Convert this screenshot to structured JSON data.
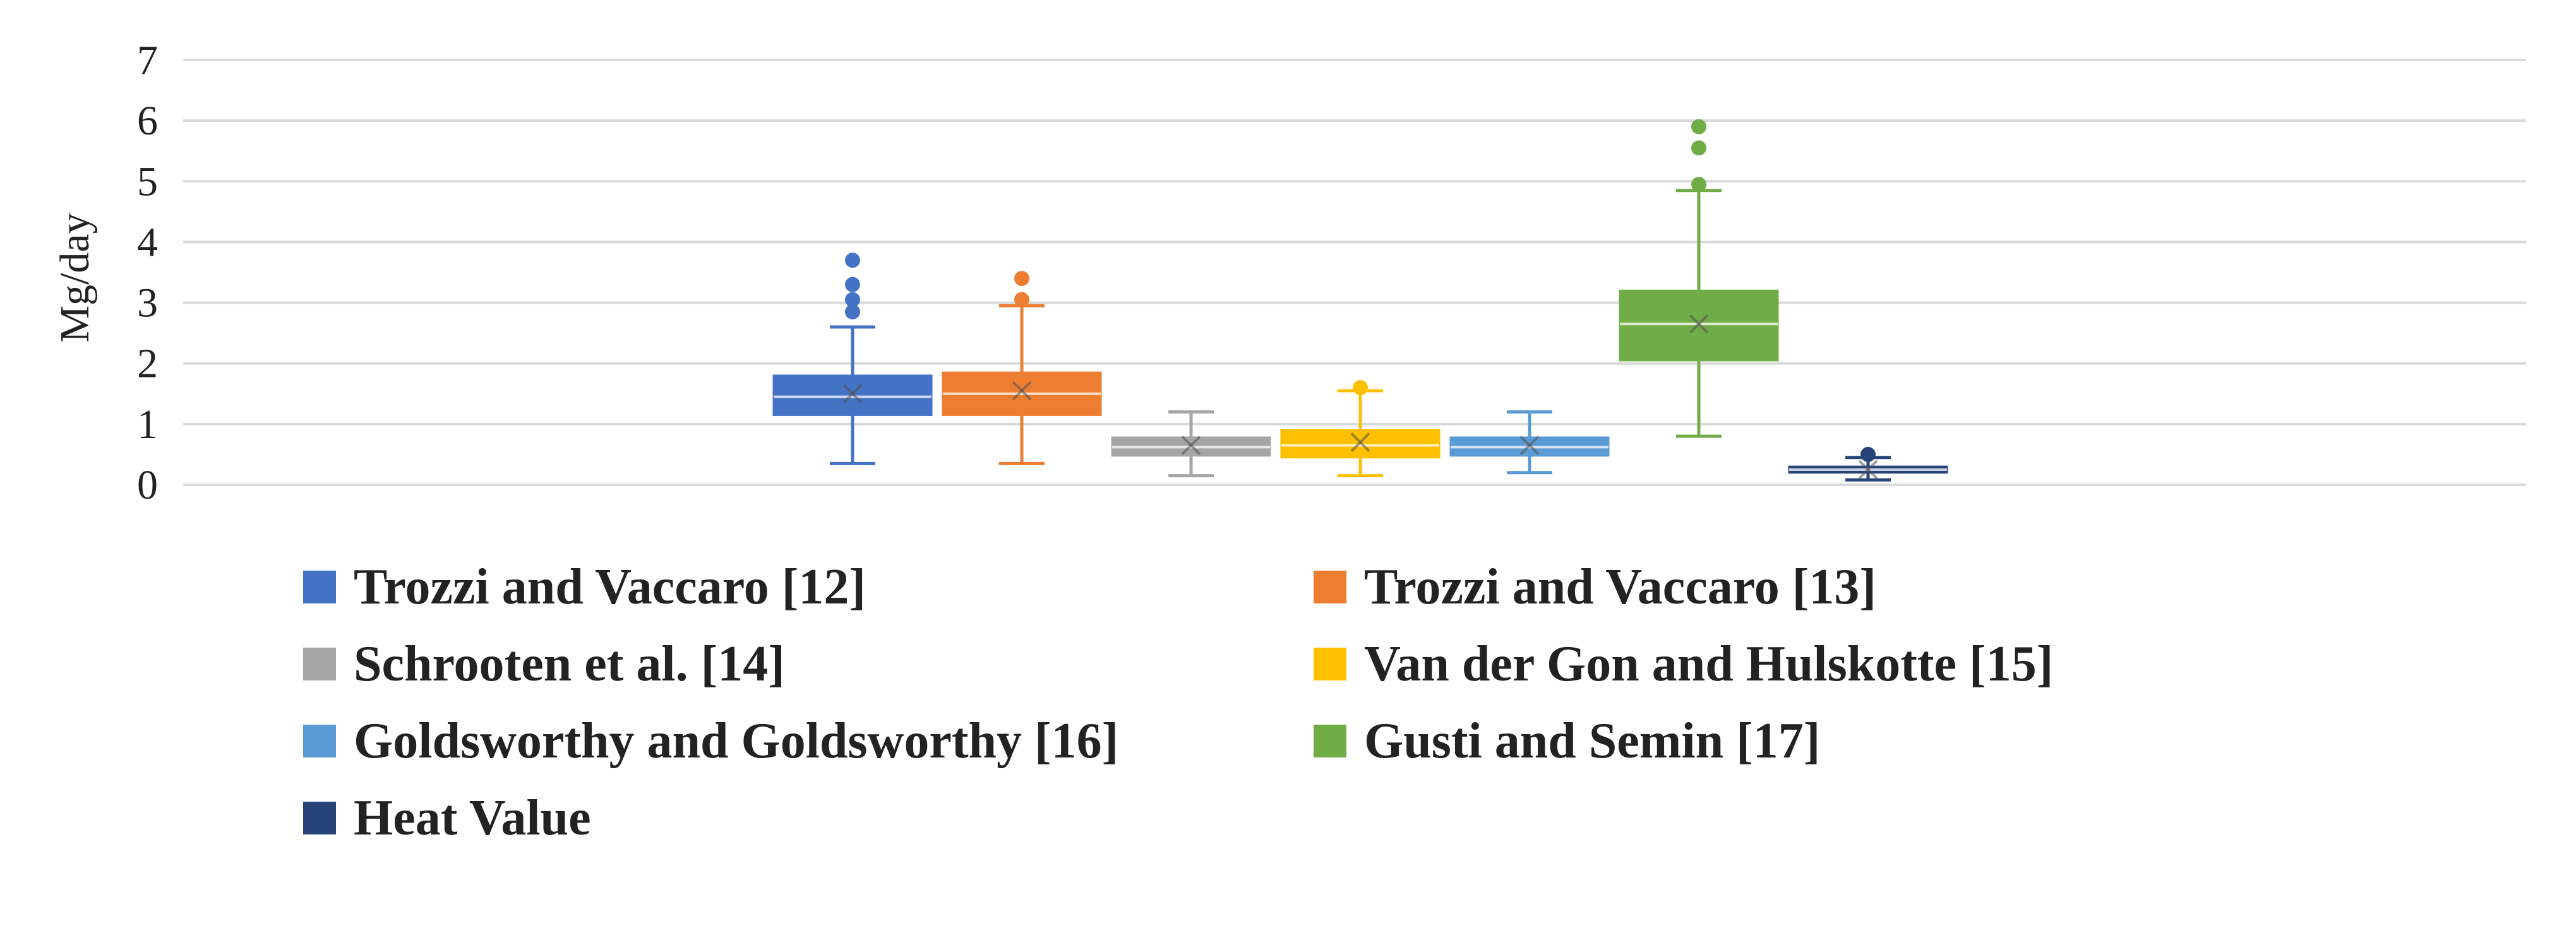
{
  "chart_data": {
    "type": "box",
    "title": "",
    "xlabel": "",
    "ylabel": "Mg/day",
    "ylim": [
      0,
      7
    ],
    "yticks": [
      "0",
      "1",
      "2",
      "3",
      "4",
      "5",
      "6",
      "7"
    ],
    "grid": true,
    "legend_position": "bottom",
    "series": [
      {
        "name": "Trozzi and Vaccaro [12]",
        "color": "#4472C4",
        "min": 0.35,
        "q1": 1.15,
        "median": 1.45,
        "mean": 1.5,
        "q3": 1.8,
        "max": 2.6,
        "outliers": [
          2.85,
          3.05,
          3.3,
          3.7
        ]
      },
      {
        "name": "Trozzi and Vaccaro [13]",
        "color": "#ED7D31",
        "min": 0.35,
        "q1": 1.15,
        "median": 1.5,
        "mean": 1.55,
        "q3": 1.85,
        "max": 2.95,
        "outliers": [
          3.05,
          3.4
        ]
      },
      {
        "name": "Schrooten et al. [14]",
        "color": "#A5A5A5",
        "min": 0.15,
        "q1": 0.48,
        "median": 0.62,
        "mean": 0.65,
        "q3": 0.78,
        "max": 1.2,
        "outliers": []
      },
      {
        "name": "Van der Gon and Hulskotte [15]",
        "color": "#FFC000",
        "min": 0.15,
        "q1": 0.45,
        "median": 0.65,
        "mean": 0.7,
        "q3": 0.9,
        "max": 1.55,
        "outliers": [
          1.6
        ]
      },
      {
        "name": "Goldsworthy and Goldsworthy [16]",
        "color": "#5B9BD5",
        "min": 0.2,
        "q1": 0.48,
        "median": 0.62,
        "mean": 0.65,
        "q3": 0.78,
        "max": 1.2,
        "outliers": []
      },
      {
        "name": "Gusti and Semin [17]",
        "color": "#70AD47",
        "min": 0.8,
        "q1": 2.05,
        "median": 2.65,
        "mean": 2.65,
        "q3": 3.2,
        "max": 4.85,
        "outliers": [
          4.95,
          5.55,
          5.9
        ]
      },
      {
        "name": "Heat Value",
        "color": "#264478",
        "min": 0.08,
        "q1": 0.2,
        "median": 0.25,
        "mean": 0.25,
        "q3": 0.3,
        "max": 0.45,
        "outliers": [
          0.5
        ]
      }
    ]
  }
}
